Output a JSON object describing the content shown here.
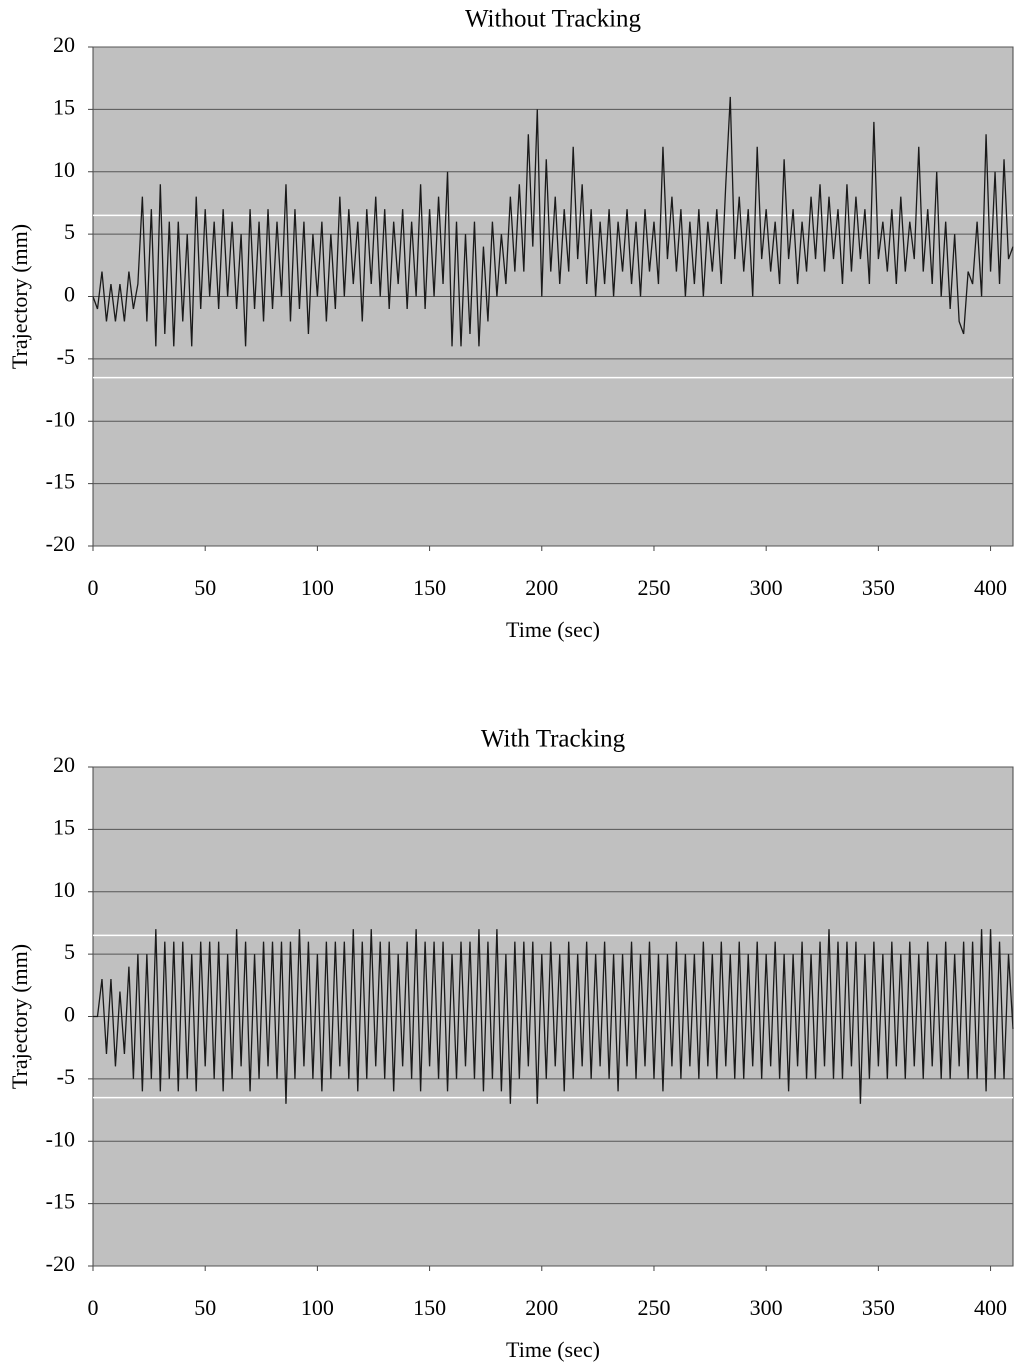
{
  "chart_data": [
    {
      "type": "line",
      "title": "Without Tracking",
      "x_label": "Time (sec)",
      "y_label": "Trajectory (mm)",
      "xlim": [
        0,
        410
      ],
      "xticks": [
        0,
        50,
        100,
        150,
        200,
        250,
        300,
        350,
        400
      ],
      "ylim": [
        -20,
        20
      ],
      "yticks": [
        -20,
        -15,
        -10,
        -5,
        0,
        5,
        10,
        15,
        20
      ],
      "grid": true,
      "background": "#c0c0c0",
      "reference_lines": [
        6.5,
        -6.5
      ],
      "reference_color": "#ffffff",
      "x": [
        0,
        2,
        4,
        6,
        8,
        10,
        12,
        14,
        16,
        18,
        20,
        22,
        24,
        26,
        28,
        30,
        32,
        34,
        36,
        38,
        40,
        42,
        44,
        46,
        48,
        50,
        52,
        54,
        56,
        58,
        60,
        62,
        64,
        66,
        68,
        70,
        72,
        74,
        76,
        78,
        80,
        82,
        84,
        86,
        88,
        90,
        92,
        94,
        96,
        98,
        100,
        102,
        104,
        106,
        108,
        110,
        112,
        114,
        116,
        118,
        120,
        122,
        124,
        126,
        128,
        130,
        132,
        134,
        136,
        138,
        140,
        142,
        144,
        146,
        148,
        150,
        152,
        154,
        156,
        158,
        160,
        162,
        164,
        166,
        168,
        170,
        172,
        174,
        176,
        178,
        180,
        182,
        184,
        186,
        188,
        190,
        192,
        194,
        196,
        198,
        200,
        202,
        204,
        206,
        208,
        210,
        212,
        214,
        216,
        218,
        220,
        222,
        224,
        226,
        228,
        230,
        232,
        234,
        236,
        238,
        240,
        242,
        244,
        246,
        248,
        250,
        252,
        254,
        256,
        258,
        260,
        262,
        264,
        266,
        268,
        270,
        272,
        274,
        276,
        278,
        280,
        282,
        284,
        286,
        288,
        290,
        292,
        294,
        296,
        298,
        300,
        302,
        304,
        306,
        308,
        310,
        312,
        314,
        316,
        318,
        320,
        322,
        324,
        326,
        328,
        330,
        332,
        334,
        336,
        338,
        340,
        342,
        344,
        346,
        348,
        350,
        352,
        354,
        356,
        358,
        360,
        362,
        364,
        366,
        368,
        370,
        372,
        374,
        376,
        378,
        380,
        382,
        384,
        386,
        388,
        390,
        392,
        394,
        396,
        398,
        400,
        402,
        404,
        406,
        408,
        410
      ],
      "series": [
        {
          "color": "#1a1a1a",
          "values": [
            0,
            -1,
            2,
            -2,
            1,
            -2,
            1,
            -2,
            2,
            -1,
            1,
            8,
            -2,
            7,
            -4,
            9,
            -3,
            6,
            -4,
            6,
            -2,
            5,
            -4,
            8,
            -1,
            7,
            0,
            6,
            -1,
            7,
            0,
            6,
            -1,
            5,
            -4,
            7,
            -1,
            6,
            -2,
            7,
            -1,
            6,
            0,
            9,
            -2,
            7,
            -1,
            6,
            -3,
            5,
            0,
            6,
            -2,
            5,
            -1,
            8,
            0,
            7,
            1,
            6,
            -2,
            7,
            1,
            8,
            0,
            7,
            -1,
            6,
            1,
            7,
            -1,
            6,
            0,
            9,
            -1,
            7,
            0,
            8,
            1,
            10,
            -4,
            6,
            -4,
            5,
            -3,
            6,
            -4,
            4,
            -2,
            6,
            0,
            5,
            1,
            8,
            2,
            9,
            2,
            13,
            4,
            15,
            0,
            11,
            2,
            8,
            1,
            7,
            2,
            12,
            3,
            9,
            1,
            7,
            0,
            6,
            1,
            7,
            0,
            6,
            2,
            7,
            1,
            6,
            0,
            7,
            2,
            6,
            1,
            12,
            3,
            8,
            2,
            7,
            0,
            6,
            1,
            7,
            0,
            6,
            2,
            7,
            1,
            9,
            16,
            3,
            8,
            2,
            7,
            0,
            12,
            3,
            7,
            2,
            6,
            1,
            11,
            3,
            7,
            1,
            6,
            2,
            8,
            3,
            9,
            2,
            8,
            3,
            7,
            1,
            9,
            2,
            8,
            3,
            7,
            1,
            14,
            3,
            6,
            2,
            7,
            1,
            8,
            2,
            6,
            3,
            12,
            2,
            7,
            1,
            10,
            0,
            6,
            -1,
            5,
            -2,
            -3,
            2,
            1,
            6,
            0,
            13,
            2,
            10,
            1,
            11,
            3,
            4
          ]
        }
      ]
    },
    {
      "type": "line",
      "title": "With Tracking",
      "x_label": "Time (sec)",
      "y_label": "Trajectory (mm)",
      "xlim": [
        0,
        410
      ],
      "xticks": [
        0,
        50,
        100,
        150,
        200,
        250,
        300,
        350,
        400
      ],
      "ylim": [
        -20,
        20
      ],
      "yticks": [
        -20,
        -15,
        -10,
        -5,
        0,
        5,
        10,
        15,
        20
      ],
      "grid": true,
      "background": "#c0c0c0",
      "reference_lines": [
        6.5,
        -6.5
      ],
      "reference_color": "#ffffff",
      "x": [
        0,
        2,
        4,
        6,
        8,
        10,
        12,
        14,
        16,
        18,
        20,
        22,
        24,
        26,
        28,
        30,
        32,
        34,
        36,
        38,
        40,
        42,
        44,
        46,
        48,
        50,
        52,
        54,
        56,
        58,
        60,
        62,
        64,
        66,
        68,
        70,
        72,
        74,
        76,
        78,
        80,
        82,
        84,
        86,
        88,
        90,
        92,
        94,
        96,
        98,
        100,
        102,
        104,
        106,
        108,
        110,
        112,
        114,
        116,
        118,
        120,
        122,
        124,
        126,
        128,
        130,
        132,
        134,
        136,
        138,
        140,
        142,
        144,
        146,
        148,
        150,
        152,
        154,
        156,
        158,
        160,
        162,
        164,
        166,
        168,
        170,
        172,
        174,
        176,
        178,
        180,
        182,
        184,
        186,
        188,
        190,
        192,
        194,
        196,
        198,
        200,
        202,
        204,
        206,
        208,
        210,
        212,
        214,
        216,
        218,
        220,
        222,
        224,
        226,
        228,
        230,
        232,
        234,
        236,
        238,
        240,
        242,
        244,
        246,
        248,
        250,
        252,
        254,
        256,
        258,
        260,
        262,
        264,
        266,
        268,
        270,
        272,
        274,
        276,
        278,
        280,
        282,
        284,
        286,
        288,
        290,
        292,
        294,
        296,
        298,
        300,
        302,
        304,
        306,
        308,
        310,
        312,
        314,
        316,
        318,
        320,
        322,
        324,
        326,
        328,
        330,
        332,
        334,
        336,
        338,
        340,
        342,
        344,
        346,
        348,
        350,
        352,
        354,
        356,
        358,
        360,
        362,
        364,
        366,
        368,
        370,
        372,
        374,
        376,
        378,
        380,
        382,
        384,
        386,
        388,
        390,
        392,
        394,
        396,
        398,
        400,
        402,
        404,
        406,
        408,
        410
      ],
      "series": [
        {
          "color": "#1a1a1a",
          "values": [
            0,
            0,
            3,
            -3,
            3,
            -4,
            2,
            -3,
            4,
            -5,
            5,
            -6,
            5,
            -5,
            7,
            -6,
            6,
            -5,
            6,
            -6,
            6,
            -5,
            5,
            -6,
            6,
            -4,
            6,
            -5,
            6,
            -6,
            5,
            -5,
            7,
            -4,
            6,
            -6,
            5,
            -5,
            6,
            -4,
            6,
            -5,
            6,
            -7,
            6,
            -5,
            7,
            -4,
            6,
            -5,
            5,
            -6,
            6,
            -5,
            6,
            -4,
            6,
            -5,
            7,
            -6,
            6,
            -5,
            7,
            -4,
            6,
            -5,
            6,
            -6,
            5,
            -4,
            6,
            -5,
            7,
            -6,
            6,
            -4,
            6,
            -5,
            6,
            -6,
            5,
            -5,
            6,
            -4,
            6,
            -5,
            7,
            -6,
            6,
            -5,
            7,
            -6,
            5,
            -7,
            6,
            -5,
            6,
            -4,
            6,
            -7,
            5,
            -5,
            6,
            -4,
            5,
            -6,
            6,
            -5,
            5,
            -4,
            6,
            -5,
            5,
            -4,
            6,
            -5,
            5,
            -6,
            5,
            -4,
            6,
            -5,
            5,
            -4,
            6,
            -5,
            5,
            -6,
            5,
            -4,
            6,
            -5,
            5,
            -4,
            5,
            -5,
            6,
            -4,
            5,
            -5,
            6,
            -4,
            5,
            -5,
            6,
            -5,
            5,
            -4,
            6,
            -5,
            5,
            -4,
            6,
            -5,
            5,
            -6,
            5,
            -4,
            6,
            -5,
            5,
            -5,
            6,
            -4,
            7,
            -5,
            6,
            -5,
            6,
            -4,
            6,
            -7,
            5,
            -5,
            6,
            -4,
            5,
            -5,
            6,
            -4,
            5,
            -5,
            6,
            -4,
            5,
            -5,
            6,
            -4,
            5,
            -5,
            6,
            -5,
            5,
            -4,
            6,
            -5,
            6,
            -5,
            7,
            -6,
            7,
            -5,
            6,
            -5,
            5,
            -1
          ]
        }
      ]
    }
  ]
}
